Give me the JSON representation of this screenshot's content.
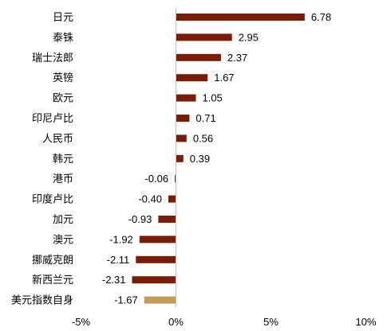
{
  "chart_data": {
    "type": "bar",
    "orientation": "horizontal",
    "categories": [
      "日元",
      "泰铢",
      "瑞士法郎",
      "英镑",
      "欧元",
      "印尼卢比",
      "人民币",
      "韩元",
      "港币",
      "印度卢比",
      "加元",
      "澳元",
      "挪威克朗",
      "新西兰元",
      "美元指数自身"
    ],
    "values": [
      6.78,
      2.95,
      2.37,
      1.67,
      1.05,
      0.71,
      0.56,
      0.39,
      -0.06,
      -0.4,
      -0.93,
      -1.92,
      -2.11,
      -2.31,
      -1.67
    ],
    "value_labels": [
      "6.78",
      "2.95",
      "2.37",
      "1.67",
      "1.05",
      "0.71",
      "0.56",
      "0.39",
      "-0.06",
      "-0.40",
      "-0.93",
      "-1.92",
      "-2.11",
      "-2.31",
      "-1.67"
    ],
    "xlim": [
      -5,
      10
    ],
    "x_ticks": [
      -5,
      0,
      5,
      10
    ],
    "x_tick_labels": [
      "-5%",
      "0%",
      "5%",
      "10%"
    ],
    "grid": false,
    "colors": {
      "bar": "#7b1c06",
      "highlight_bar": "#c49a5a",
      "axis": "#bfbfbf"
    },
    "highlight_index": 14
  }
}
